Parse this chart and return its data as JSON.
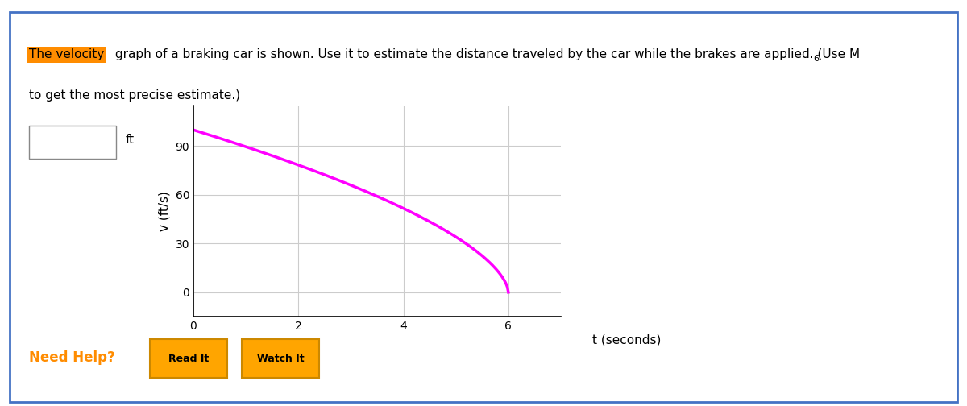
{
  "title_text": "The velocity graph of a braking car is shown. Use it to estimate the distance traveled by the car while the brakes are applied. (Use M",
  "title_subscript": "6",
  "title_text2": "to get the most precise estimate.)",
  "highlight_word": "The velocity",
  "highlight_color": "#FF8C00",
  "highlight_text_color": "#000000",
  "ylabel": "v (ft/s)",
  "xlabel": "t (seconds)",
  "yticks": [
    0,
    30,
    60,
    90
  ],
  "xticks": [
    0,
    2,
    4,
    6
  ],
  "xlim": [
    0,
    7
  ],
  "ylim": [
    -15,
    115
  ],
  "curve_color": "#FF00FF",
  "curve_lw": 2.5,
  "v0": 100,
  "t_end": 6,
  "background_color": "#FFFFFF",
  "grid_color": "#CCCCCC",
  "answer_box_color": "#FFFFFF",
  "answer_box_border": "#AAAAAA",
  "ft_label": "ft",
  "need_help_color": "#FF8C00",
  "need_help_text": "Need Help?",
  "button1_text": "Read It",
  "button2_text": "Watch It",
  "button_color": "#FFA500",
  "button_border_color": "#CC8800",
  "outer_border_color": "#4472C4",
  "fig_width": 12.0,
  "fig_height": 5.04
}
